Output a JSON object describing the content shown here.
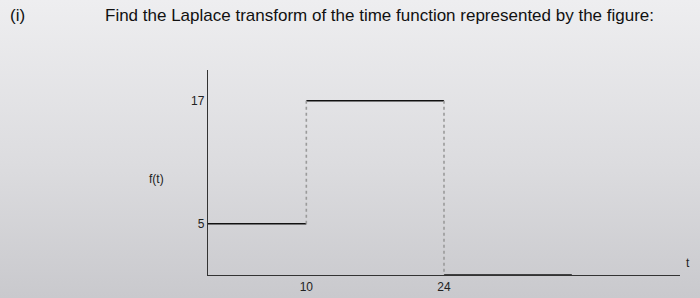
{
  "question": {
    "label": "(i)",
    "text": "Find the Laplace transform of the time function represented by the figure:"
  },
  "chart_data": {
    "type": "line",
    "x_label": "t",
    "y_label": "f(t)",
    "series": [
      {
        "x": [
          0,
          10
        ],
        "values": [
          5,
          5
        ],
        "color": "#111111",
        "line_style": "solid"
      },
      {
        "x": [
          10,
          24
        ],
        "values": [
          17,
          17
        ],
        "color": "#111111",
        "line_style": "solid"
      },
      {
        "x": [
          24,
          37
        ],
        "values": [
          0,
          0
        ],
        "color": "#111111",
        "line_style": "solid"
      },
      {
        "x": [
          10,
          10,
          null,
          24,
          24
        ],
        "values": [
          5,
          17,
          null,
          17,
          0
        ],
        "color": "#9a9a9a",
        "line_style": "dotted"
      }
    ],
    "xlim": [
      0,
      48
    ],
    "xticks": [
      10,
      24
    ],
    "ylim": [
      0,
      20
    ],
    "yticks": [
      5,
      17
    ],
    "grid": false
  }
}
